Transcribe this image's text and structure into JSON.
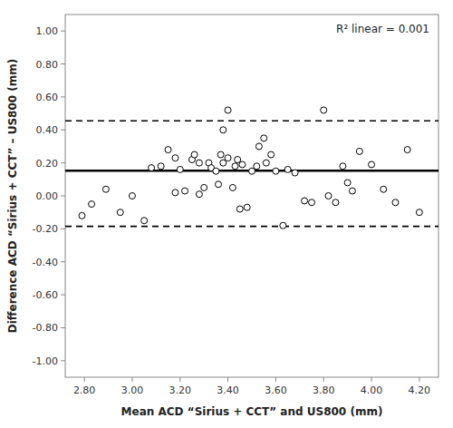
{
  "chart_data": {
    "type": "scatter",
    "x": [
      2.79,
      2.83,
      2.89,
      2.95,
      3.0,
      3.05,
      3.08,
      3.12,
      3.15,
      3.18,
      3.18,
      3.2,
      3.22,
      3.25,
      3.26,
      3.28,
      3.28,
      3.3,
      3.32,
      3.33,
      3.35,
      3.36,
      3.37,
      3.38,
      3.38,
      3.4,
      3.4,
      3.42,
      3.43,
      3.44,
      3.45,
      3.46,
      3.48,
      3.5,
      3.52,
      3.53,
      3.55,
      3.56,
      3.58,
      3.6,
      3.63,
      3.65,
      3.68,
      3.72,
      3.75,
      3.8,
      3.82,
      3.85,
      3.88,
      3.9,
      3.92,
      3.95,
      4.0,
      4.05,
      4.1,
      4.15,
      4.2
    ],
    "values": [
      -0.12,
      -0.05,
      0.04,
      -0.1,
      0.0,
      -0.15,
      0.17,
      0.18,
      0.28,
      0.02,
      0.23,
      0.16,
      0.03,
      0.22,
      0.25,
      0.2,
      0.01,
      0.05,
      0.2,
      0.17,
      0.15,
      0.07,
      0.25,
      0.4,
      0.2,
      0.52,
      0.23,
      0.05,
      0.18,
      0.22,
      -0.08,
      0.19,
      -0.07,
      0.15,
      0.18,
      0.3,
      0.35,
      0.2,
      0.25,
      0.15,
      -0.18,
      0.16,
      0.14,
      -0.03,
      -0.04,
      0.52,
      0.0,
      -0.04,
      0.18,
      0.08,
      0.03,
      0.27,
      0.19,
      0.04,
      -0.04,
      0.28,
      -0.1
    ],
    "reference_lines": [
      {
        "value": 0.152,
        "line_style": "solid"
      },
      {
        "value": 0.455,
        "line_style": "dashed"
      },
      {
        "value": -0.185,
        "line_style": "dashed"
      }
    ],
    "xlabel": "Mean ACD “Sirius + CCT” and US800 (mm)",
    "ylabel": "Difference ACD “Sirius + CCT” – US800 (mm)",
    "annotation": "R² linear = 0.001",
    "xlim": [
      2.72,
      4.28
    ],
    "ylim": [
      -1.1,
      1.1
    ],
    "xticks": [
      {
        "value": 2.8,
        "label": "2.80"
      },
      {
        "value": 3.0,
        "label": "3.00"
      },
      {
        "value": 3.2,
        "label": "3.20"
      },
      {
        "value": 3.4,
        "label": "3.40"
      },
      {
        "value": 3.6,
        "label": "3.60"
      },
      {
        "value": 3.8,
        "label": "3.80"
      },
      {
        "value": 4.0,
        "label": "4.00"
      },
      {
        "value": 4.2,
        "label": "4.20"
      }
    ],
    "yticks": [
      {
        "value": -1.0,
        "label": "-1.00"
      },
      {
        "value": -0.8,
        "label": "-0.80"
      },
      {
        "value": -0.6,
        "label": "-0.60"
      },
      {
        "value": -0.4,
        "label": "-0.40"
      },
      {
        "value": -0.2,
        "label": "-0.20"
      },
      {
        "value": 0.0,
        "label": "0.00"
      },
      {
        "value": 0.2,
        "label": "0.20"
      },
      {
        "value": 0.4,
        "label": "0.40"
      },
      {
        "value": 0.6,
        "label": "0.60"
      },
      {
        "value": 0.8,
        "label": "0.80"
      },
      {
        "value": 1.0,
        "label": "1.00"
      }
    ],
    "color": "black",
    "marker": "hollow",
    "grid": false
  }
}
